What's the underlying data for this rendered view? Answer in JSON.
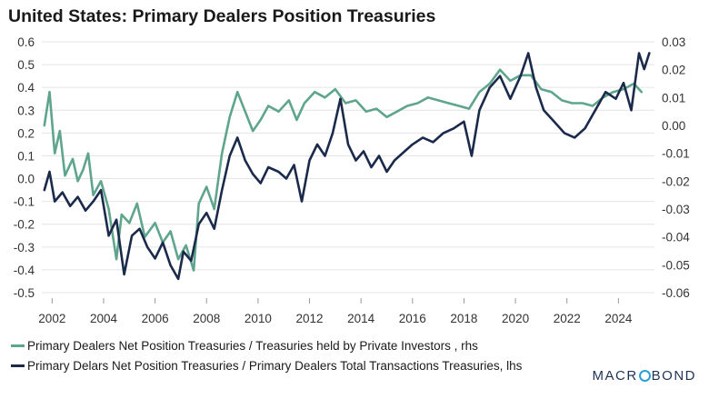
{
  "title": "United States: Primary Dealers Position Treasuries",
  "chart_data": {
    "type": "line",
    "title": "United States: Primary Dealers Position Treasuries",
    "x_ticks": [
      "2002",
      "2004",
      "2006",
      "2008",
      "2010",
      "2012",
      "2014",
      "2016",
      "2018",
      "2020",
      "2022",
      "2024"
    ],
    "xlim": [
      2001.6,
      2025.4
    ],
    "y_left": {
      "ticks": [
        "0.6",
        "0.5",
        "0.4",
        "0.3",
        "0.2",
        "0.1",
        "0.0",
        "-0.1",
        "-0.2",
        "-0.3",
        "-0.4",
        "-0.5"
      ],
      "lim": [
        -0.5,
        0.6
      ]
    },
    "y_right": {
      "ticks": [
        "0.03",
        "0.02",
        "0.01",
        "0.00",
        "-0.01",
        "-0.02",
        "-0.03",
        "-0.04",
        "-0.05",
        "-0.06"
      ],
      "lim": [
        -0.06,
        0.03
      ]
    },
    "grid": true,
    "legend_position": "bottom",
    "series": [
      {
        "name": "Primary Dealers Net Position Treasuries / Treasuries held by Private Investors , rhs",
        "axis": "right",
        "color": "#5fa58e",
        "points": [
          [
            2001.7,
            0.0
          ],
          [
            2001.9,
            0.012
          ],
          [
            2002.1,
            -0.01
          ],
          [
            2002.3,
            -0.002
          ],
          [
            2002.5,
            -0.018
          ],
          [
            2002.8,
            -0.012
          ],
          [
            2003.0,
            -0.02
          ],
          [
            2003.2,
            -0.016
          ],
          [
            2003.4,
            -0.01
          ],
          [
            2003.6,
            -0.025
          ],
          [
            2003.9,
            -0.02
          ],
          [
            2004.2,
            -0.03
          ],
          [
            2004.5,
            -0.048
          ],
          [
            2004.7,
            -0.032
          ],
          [
            2005.0,
            -0.035
          ],
          [
            2005.3,
            -0.028
          ],
          [
            2005.6,
            -0.04
          ],
          [
            2006.0,
            -0.035
          ],
          [
            2006.3,
            -0.042
          ],
          [
            2006.6,
            -0.038
          ],
          [
            2006.9,
            -0.048
          ],
          [
            2007.2,
            -0.043
          ],
          [
            2007.5,
            -0.052
          ],
          [
            2007.7,
            -0.028
          ],
          [
            2008.0,
            -0.022
          ],
          [
            2008.3,
            -0.03
          ],
          [
            2008.6,
            -0.01
          ],
          [
            2008.9,
            0.003
          ],
          [
            2009.2,
            0.012
          ],
          [
            2009.5,
            0.005
          ],
          [
            2009.8,
            -0.002
          ],
          [
            2010.1,
            0.002
          ],
          [
            2010.4,
            0.007
          ],
          [
            2010.8,
            0.005
          ],
          [
            2011.2,
            0.009
          ],
          [
            2011.5,
            0.002
          ],
          [
            2011.8,
            0.008
          ],
          [
            2012.2,
            0.012
          ],
          [
            2012.6,
            0.01
          ],
          [
            2013.0,
            0.013
          ],
          [
            2013.4,
            0.008
          ],
          [
            2013.8,
            0.009
          ],
          [
            2014.2,
            0.005
          ],
          [
            2014.6,
            0.006
          ],
          [
            2015.0,
            0.003
          ],
          [
            2015.4,
            0.005
          ],
          [
            2015.8,
            0.007
          ],
          [
            2016.2,
            0.008
          ],
          [
            2016.6,
            0.01
          ],
          [
            2017.0,
            0.009
          ],
          [
            2017.4,
            0.008
          ],
          [
            2017.8,
            0.007
          ],
          [
            2018.2,
            0.006
          ],
          [
            2018.6,
            0.012
          ],
          [
            2019.0,
            0.015
          ],
          [
            2019.4,
            0.02
          ],
          [
            2019.8,
            0.016
          ],
          [
            2020.2,
            0.018
          ],
          [
            2020.6,
            0.018
          ],
          [
            2021.0,
            0.013
          ],
          [
            2021.4,
            0.012
          ],
          [
            2021.8,
            0.009
          ],
          [
            2022.2,
            0.008
          ],
          [
            2022.6,
            0.008
          ],
          [
            2023.0,
            0.007
          ],
          [
            2023.4,
            0.01
          ],
          [
            2023.8,
            0.012
          ],
          [
            2024.2,
            0.013
          ],
          [
            2024.6,
            0.015
          ],
          [
            2024.9,
            0.012
          ]
        ]
      },
      {
        "name": "Primary Delars Net Position Treasuries / Primary Dealers Total Transactions Treasuries, lhs",
        "axis": "left",
        "color": "#1b2a4a",
        "points": [
          [
            2001.7,
            -0.05
          ],
          [
            2001.9,
            0.03
          ],
          [
            2002.1,
            -0.1
          ],
          [
            2002.4,
            -0.06
          ],
          [
            2002.7,
            -0.12
          ],
          [
            2003.0,
            -0.08
          ],
          [
            2003.3,
            -0.14
          ],
          [
            2003.6,
            -0.1
          ],
          [
            2003.9,
            -0.05
          ],
          [
            2004.2,
            -0.25
          ],
          [
            2004.5,
            -0.18
          ],
          [
            2004.8,
            -0.42
          ],
          [
            2005.1,
            -0.25
          ],
          [
            2005.4,
            -0.22
          ],
          [
            2005.7,
            -0.3
          ],
          [
            2006.0,
            -0.35
          ],
          [
            2006.3,
            -0.28
          ],
          [
            2006.6,
            -0.38
          ],
          [
            2006.9,
            -0.44
          ],
          [
            2007.1,
            -0.32
          ],
          [
            2007.4,
            -0.36
          ],
          [
            2007.7,
            -0.2
          ],
          [
            2008.0,
            -0.15
          ],
          [
            2008.3,
            -0.22
          ],
          [
            2008.6,
            -0.05
          ],
          [
            2008.9,
            0.1
          ],
          [
            2009.2,
            0.18
          ],
          [
            2009.5,
            0.08
          ],
          [
            2009.8,
            0.02
          ],
          [
            2010.1,
            -0.02
          ],
          [
            2010.4,
            0.05
          ],
          [
            2010.8,
            0.03
          ],
          [
            2011.1,
            0.0
          ],
          [
            2011.4,
            0.06
          ],
          [
            2011.7,
            -0.1
          ],
          [
            2012.0,
            0.08
          ],
          [
            2012.3,
            0.15
          ],
          [
            2012.6,
            0.1
          ],
          [
            2012.9,
            0.2
          ],
          [
            2013.2,
            0.35
          ],
          [
            2013.5,
            0.15
          ],
          [
            2013.8,
            0.08
          ],
          [
            2014.1,
            0.12
          ],
          [
            2014.4,
            0.05
          ],
          [
            2014.7,
            0.1
          ],
          [
            2015.0,
            0.03
          ],
          [
            2015.3,
            0.08
          ],
          [
            2015.7,
            0.12
          ],
          [
            2016.0,
            0.15
          ],
          [
            2016.4,
            0.18
          ],
          [
            2016.8,
            0.16
          ],
          [
            2017.2,
            0.2
          ],
          [
            2017.6,
            0.22
          ],
          [
            2018.0,
            0.25
          ],
          [
            2018.3,
            0.1
          ],
          [
            2018.6,
            0.3
          ],
          [
            2019.0,
            0.4
          ],
          [
            2019.4,
            0.45
          ],
          [
            2019.8,
            0.35
          ],
          [
            2020.2,
            0.45
          ],
          [
            2020.5,
            0.55
          ],
          [
            2020.8,
            0.4
          ],
          [
            2021.1,
            0.3
          ],
          [
            2021.5,
            0.25
          ],
          [
            2021.9,
            0.2
          ],
          [
            2022.3,
            0.18
          ],
          [
            2022.7,
            0.22
          ],
          [
            2023.1,
            0.3
          ],
          [
            2023.5,
            0.38
          ],
          [
            2023.9,
            0.35
          ],
          [
            2024.2,
            0.42
          ],
          [
            2024.5,
            0.3
          ],
          [
            2024.8,
            0.55
          ],
          [
            2025.0,
            0.48
          ],
          [
            2025.2,
            0.55
          ]
        ]
      }
    ]
  },
  "legend": [
    {
      "label": "Primary Dealers Net Position Treasuries / Treasuries held by Private Investors , rhs",
      "color": "#5fa58e"
    },
    {
      "label": "Primary Delars Net Position Treasuries / Primary Dealers Total Transactions Treasuries, lhs",
      "color": "#1b2a4a"
    }
  ],
  "brand": {
    "part1": "MACR",
    "part2": "BOND"
  }
}
